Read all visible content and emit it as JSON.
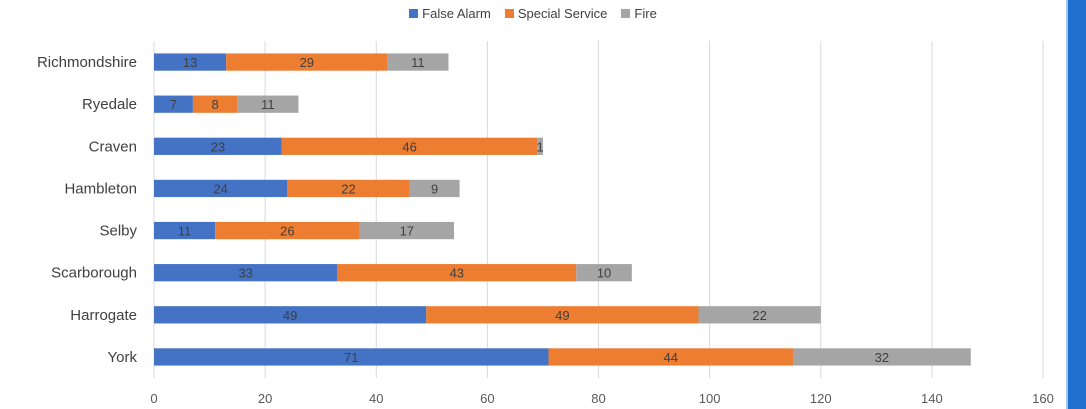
{
  "chart_data": {
    "type": "bar",
    "orientation": "horizontal",
    "stacked": true,
    "categories": [
      "Richmondshire",
      "Ryedale",
      "Craven",
      "Hambleton",
      "Selby",
      "Scarborough",
      "Harrogate",
      "York"
    ],
    "series": [
      {
        "name": "False Alarm",
        "color": "#4472c4",
        "values": [
          13,
          7,
          23,
          24,
          11,
          33,
          49,
          71
        ]
      },
      {
        "name": "Special Service",
        "color": "#ed7d31",
        "values": [
          29,
          8,
          46,
          22,
          26,
          43,
          49,
          44
        ]
      },
      {
        "name": "Fire",
        "color": "#a5a5a5",
        "values": [
          11,
          11,
          1,
          9,
          17,
          10,
          22,
          32
        ]
      }
    ],
    "xlim": [
      0,
      160
    ],
    "xticks": [
      0,
      20,
      40,
      60,
      80,
      100,
      120,
      140,
      160
    ],
    "grid": true,
    "legend_position": "top",
    "title": "",
    "xlabel": "",
    "ylabel": ""
  },
  "legend": {
    "items": [
      {
        "label": "False Alarm",
        "color": "#4472c4"
      },
      {
        "label": "Special Service",
        "color": "#ed7d31"
      },
      {
        "label": "Fire",
        "color": "#a5a5a5"
      }
    ]
  }
}
